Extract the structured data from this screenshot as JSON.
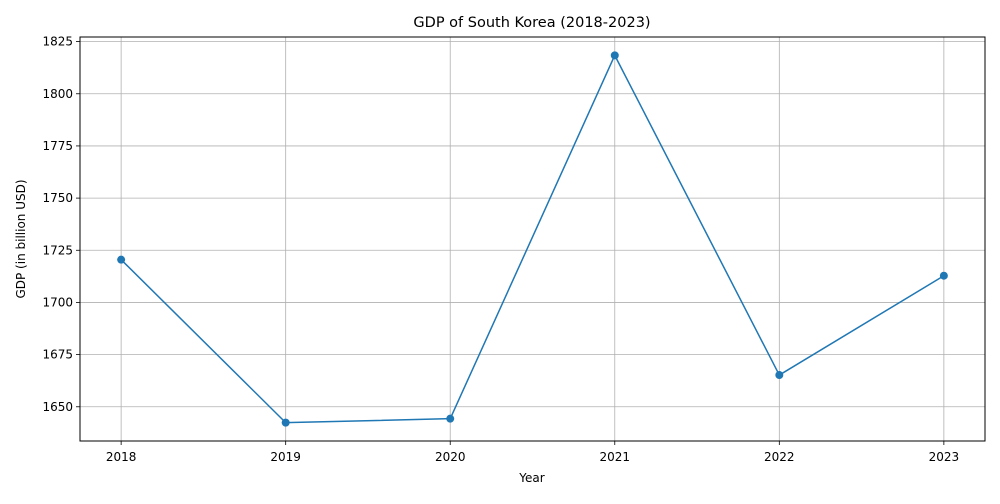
{
  "chart_data": {
    "type": "line",
    "title": "GDP of South Korea (2018-2023)",
    "xlabel": "Year",
    "ylabel": "GDP (in billion USD)",
    "x": [
      2018,
      2019,
      2020,
      2021,
      2022,
      2023
    ],
    "x_tick_labels": [
      "2018",
      "2019",
      "2020",
      "2021",
      "2022",
      "2023"
    ],
    "series": [
      {
        "values": [
          1720.5,
          1642.4,
          1644.3,
          1818.4,
          1665.2,
          1712.8
        ],
        "color": "#1f77b4",
        "marker": "circle"
      }
    ],
    "y_ticks": [
      1650,
      1675,
      1700,
      1725,
      1750,
      1775,
      1800,
      1825
    ],
    "y_tick_labels": [
      "1650",
      "1675",
      "1700",
      "1725",
      "1750",
      "1775",
      "1800",
      "1825"
    ],
    "xlim": [
      2017.75,
      2023.25
    ],
    "ylim": [
      1633.6,
      1827.2
    ],
    "grid": true,
    "legend": "none"
  }
}
